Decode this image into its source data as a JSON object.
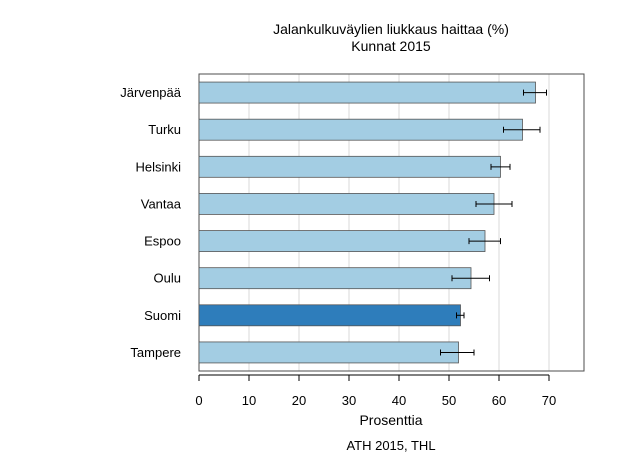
{
  "chart_data": {
    "type": "bar",
    "orientation": "horizontal",
    "title": "Jalankulkuväylien liukkaus haittaa (%)",
    "subtitle": "Kunnat 2015",
    "xlabel": "Prosenttia",
    "ylabel": "",
    "xlim": [
      0,
      77
    ],
    "xticks": [
      0,
      10,
      20,
      30,
      40,
      50,
      60,
      70
    ],
    "grid": "vertical",
    "categories": [
      "Järvenpää",
      "Turku",
      "Helsinki",
      "Vantaa",
      "Espoo",
      "Oulu",
      "Suomi",
      "Tampere"
    ],
    "values": [
      67.3,
      64.7,
      60.3,
      59.0,
      57.2,
      54.4,
      52.3,
      51.9
    ],
    "error_low": [
      64.9,
      60.9,
      58.4,
      55.4,
      54.0,
      50.6,
      51.5,
      48.3
    ],
    "error_high": [
      69.5,
      68.2,
      62.2,
      62.6,
      60.3,
      58.1,
      53.0,
      55.0
    ],
    "highlight_category": "Suomi",
    "colors": {
      "bar": "#a3cde3",
      "highlight": "#2e7dbb",
      "grid": "#d9d9d9",
      "frame": "#4d4d4d"
    }
  },
  "source": "ATH 2015, THL"
}
